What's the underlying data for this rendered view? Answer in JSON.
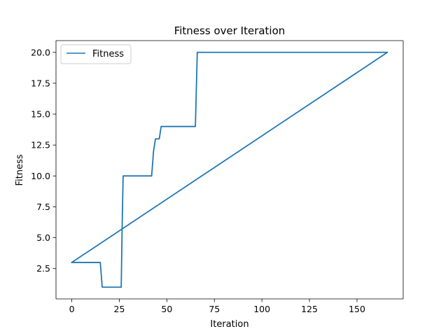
{
  "chart_data": {
    "type": "line",
    "title": "Fitness over Iteration",
    "xlabel": "Iteration",
    "ylabel": "Fitness",
    "xlim": [
      -8.3,
      174.3
    ],
    "ylim": [
      0.05,
      20.95
    ],
    "xticks": [
      0,
      25,
      50,
      75,
      100,
      125,
      150
    ],
    "xtick_labels": [
      "0",
      "25",
      "50",
      "75",
      "100",
      "125",
      "150"
    ],
    "yticks": [
      2.5,
      5.0,
      7.5,
      10.0,
      12.5,
      15.0,
      17.5,
      20.0
    ],
    "ytick_labels": [
      "2.5",
      "5.0",
      "7.5",
      "10.0",
      "12.5",
      "15.0",
      "17.5",
      "20.0"
    ],
    "legend": {
      "location": "upper left",
      "entries": [
        "Fitness"
      ]
    },
    "grid": false,
    "series": [
      {
        "name": "Fitness",
        "color": "#1f77b4",
        "x": [
          0,
          15,
          16,
          26,
          26.5,
          27,
          42,
          43,
          44,
          46,
          47,
          65,
          66,
          166,
          0
        ],
        "y": [
          3,
          3,
          1,
          1,
          6,
          10,
          10,
          12,
          13,
          13,
          14,
          14,
          20,
          20,
          3
        ]
      }
    ]
  }
}
